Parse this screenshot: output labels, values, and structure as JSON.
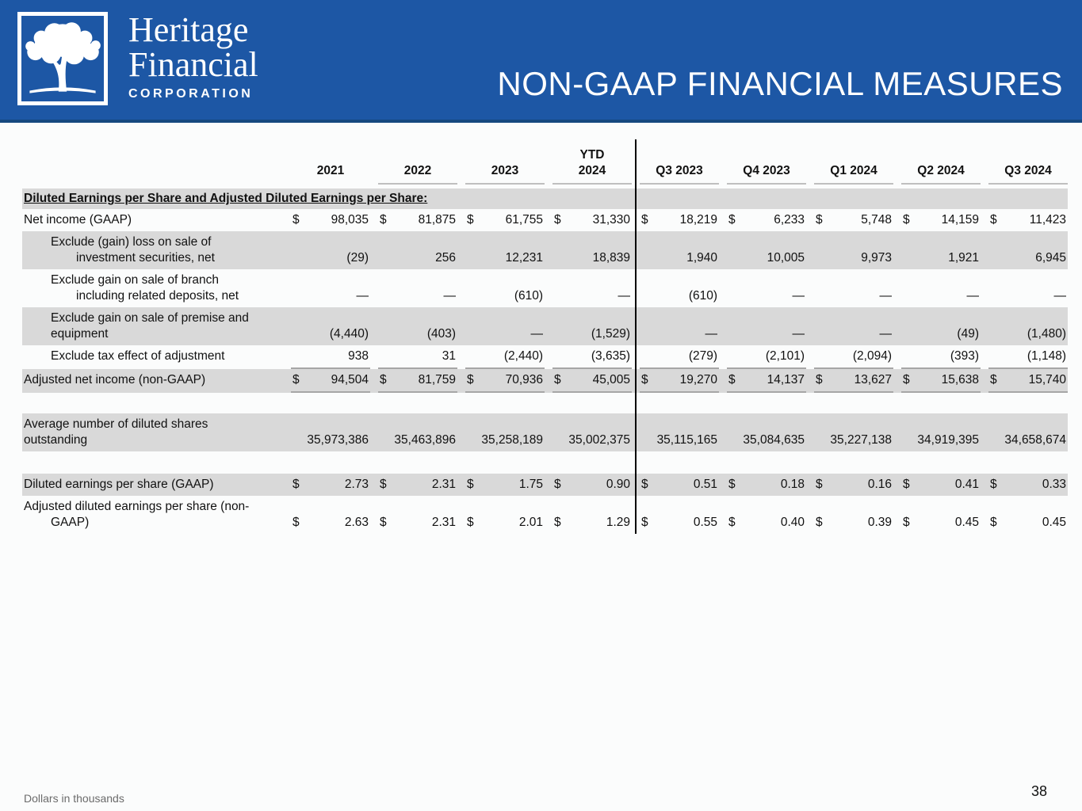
{
  "brand": {
    "name_line1": "Heritage",
    "name_line2": "Financial",
    "name_line3": "CORPORATION",
    "logo_icon": "oak-tree-icon"
  },
  "slide": {
    "title": "NON-GAAP FINANCIAL MEASURES",
    "footnote": "Dollars in thousands",
    "page_number": "38"
  },
  "colors": {
    "header_blue": "#1D57A5",
    "header_accent": "#16497F",
    "row_shade": "#D9D9D9",
    "divider": "#000000"
  },
  "table": {
    "column_headers": [
      "2021",
      "2022",
      "2023",
      "YTD\n2024",
      "Q3 2023",
      "Q4 2023",
      "Q1 2024",
      "Q2 2024",
      "Q3 2024"
    ],
    "section_header": "Diluted Earnings per Share and Adjusted Diluted Earnings per Share:",
    "rows": [
      {
        "id": "net-income-gaap",
        "label_lines": [
          {
            "text": "Net income (GAAP)",
            "indent": 0
          }
        ],
        "dollar": true,
        "shaded": false,
        "rule_bottom": false,
        "gap_before": 0,
        "values": [
          "98,035",
          "81,875",
          "61,755",
          "31,330",
          "18,219",
          "6,233",
          "5,748",
          "14,159",
          "11,423"
        ]
      },
      {
        "id": "exclude-gain-loss-securities",
        "label_lines": [
          {
            "text": "Exclude (gain) loss on sale of",
            "indent": 1
          },
          {
            "text": "investment securities, net",
            "indent": 2
          }
        ],
        "dollar": false,
        "shaded": true,
        "rule_bottom": false,
        "gap_before": 0,
        "values": [
          "(29)",
          "256",
          "12,231",
          "18,839",
          "1,940",
          "10,005",
          "9,973",
          "1,921",
          "6,945"
        ]
      },
      {
        "id": "exclude-gain-branch",
        "label_lines": [
          {
            "text": "Exclude gain on sale of branch",
            "indent": 1
          },
          {
            "text": "including related deposits, net",
            "indent": 2
          }
        ],
        "dollar": false,
        "shaded": false,
        "rule_bottom": false,
        "gap_before": 0,
        "values": [
          "—",
          "—",
          "(610)",
          "—",
          "(610)",
          "—",
          "—",
          "—",
          "—"
        ]
      },
      {
        "id": "exclude-gain-premise",
        "label_lines": [
          {
            "text": "Exclude gain on sale of premise and",
            "indent": 1
          },
          {
            "text": "equipment",
            "indent": 1
          }
        ],
        "dollar": false,
        "shaded": true,
        "rule_bottom": false,
        "gap_before": 0,
        "values": [
          "(4,440)",
          "(403)",
          "—",
          "(1,529)",
          "—",
          "—",
          "—",
          "(49)",
          "(1,480)"
        ]
      },
      {
        "id": "exclude-tax-effect",
        "label_lines": [
          {
            "text": "Exclude tax effect of adjustment",
            "indent": 1
          }
        ],
        "dollar": false,
        "shaded": false,
        "rule_bottom": true,
        "gap_before": 0,
        "values": [
          "938",
          "31",
          "(2,440)",
          "(3,635)",
          "(279)",
          "(2,101)",
          "(2,094)",
          "(393)",
          "(1,148)"
        ]
      },
      {
        "id": "adjusted-net-income",
        "label_lines": [
          {
            "text": "Adjusted net income (non-GAAP)",
            "indent": 0
          }
        ],
        "dollar": true,
        "shaded": true,
        "rule_bottom": true,
        "gap_before": 0,
        "values": [
          "94,504",
          "81,759",
          "70,936",
          "45,005",
          "19,270",
          "14,137",
          "13,627",
          "15,638",
          "15,740"
        ]
      },
      {
        "id": "average-diluted-shares",
        "label_lines": [
          {
            "text": "Average number of diluted shares",
            "indent": 0
          },
          {
            "text": "outstanding",
            "indent": 0
          }
        ],
        "dollar": false,
        "shaded": true,
        "rule_bottom": false,
        "gap_before": 26,
        "values": [
          "35,973,386",
          "35,463,896",
          "35,258,189",
          "35,002,375",
          "35,115,165",
          "35,084,635",
          "35,227,138",
          "34,919,395",
          "34,658,674"
        ]
      },
      {
        "id": "diluted-eps-gaap",
        "label_lines": [
          {
            "text": "Diluted earnings per share (GAAP)",
            "indent": 0
          }
        ],
        "dollar": true,
        "shaded": true,
        "rule_bottom": false,
        "gap_before": 28,
        "values": [
          "2.73",
          "2.31",
          "1.75",
          "0.90",
          "0.51",
          "0.18",
          "0.16",
          "0.41",
          "0.33"
        ]
      },
      {
        "id": "adjusted-diluted-eps",
        "label_lines": [
          {
            "text": "Adjusted diluted earnings per share (non-",
            "indent": 0
          },
          {
            "text": "GAAP)",
            "indent": 1
          }
        ],
        "dollar": true,
        "shaded": false,
        "rule_bottom": false,
        "gap_before": 0,
        "values": [
          "2.63",
          "2.31",
          "2.01",
          "1.29",
          "0.55",
          "0.40",
          "0.39",
          "0.45",
          "0.45"
        ]
      }
    ]
  }
}
